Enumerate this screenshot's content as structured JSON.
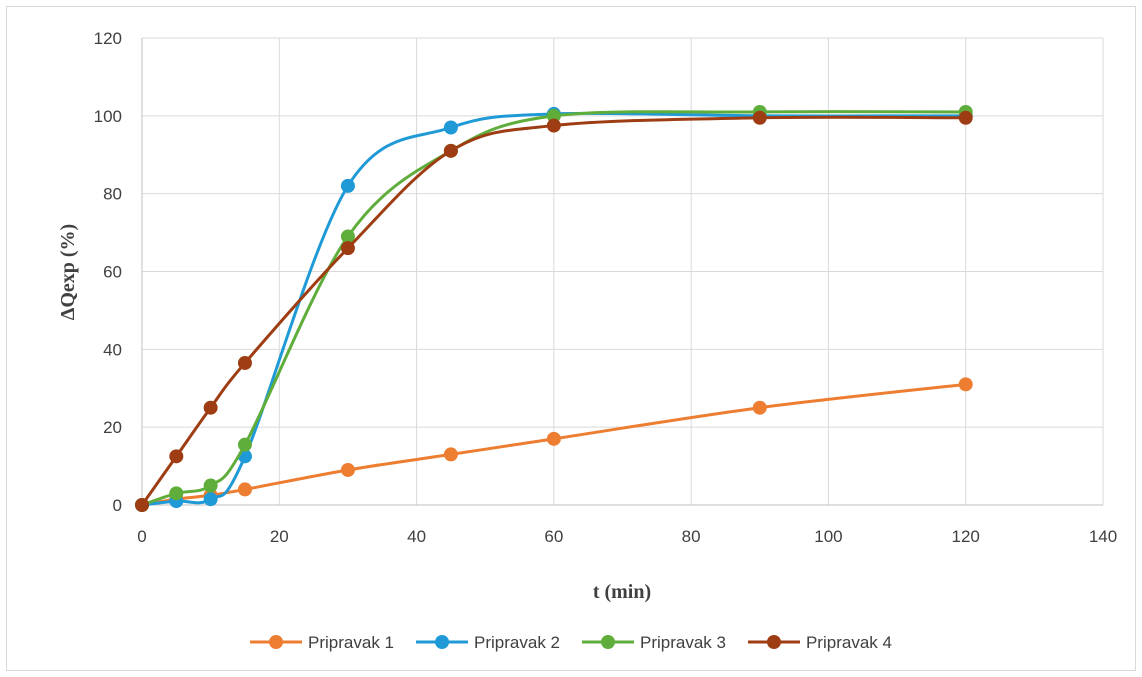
{
  "chart_data": {
    "type": "line",
    "title": "",
    "xlabel": "t (min)",
    "ylabel": "ΔQexp (%)",
    "xlim": [
      0,
      140
    ],
    "ylim": [
      0,
      120
    ],
    "xticks": [
      0,
      20,
      40,
      60,
      80,
      100,
      120,
      140
    ],
    "yticks": [
      0,
      20,
      40,
      60,
      80,
      100,
      120
    ],
    "grid": true,
    "smooth": true,
    "legend_position": "bottom",
    "series": [
      {
        "name": "Pripravak 1",
        "color": "#ed7d31",
        "x": [
          0,
          5,
          10,
          15,
          30,
          45,
          60,
          90,
          120
        ],
        "y": [
          0,
          1.5,
          2.5,
          4,
          9,
          13,
          17,
          25,
          31
        ]
      },
      {
        "name": "Pripravak 2",
        "color": "#1f9ad6",
        "x": [
          0,
          5,
          10,
          15,
          30,
          45,
          60,
          90,
          120
        ],
        "y": [
          0,
          1,
          1.5,
          12.5,
          82,
          97,
          100.5,
          100,
          100
        ]
      },
      {
        "name": "Pripravak 3",
        "color": "#5fad3a",
        "x": [
          0,
          5,
          10,
          15,
          30,
          45,
          60,
          90,
          120
        ],
        "y": [
          0,
          3,
          5,
          15.5,
          69,
          91,
          100,
          101,
          101
        ]
      },
      {
        "name": "Pripravak 4",
        "color": "#9e3d13",
        "x": [
          0,
          5,
          10,
          15,
          30,
          45,
          60,
          90,
          120
        ],
        "y": [
          0,
          12.5,
          25,
          36.5,
          66,
          91,
          97.5,
          99.5,
          99.5
        ]
      }
    ]
  }
}
